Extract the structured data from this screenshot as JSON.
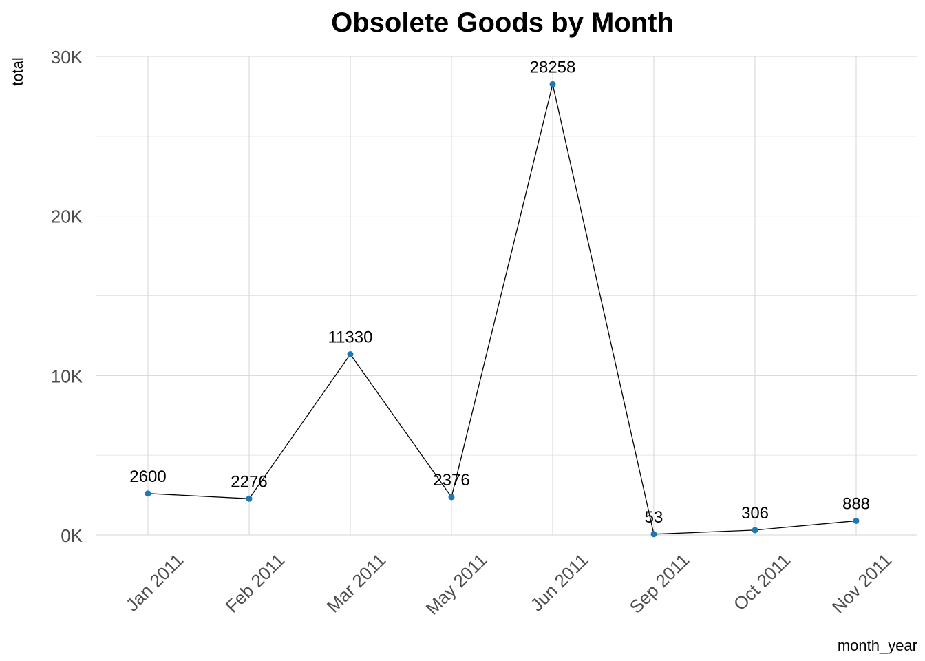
{
  "chart_data": {
    "type": "line",
    "title": "Obsolete Goods by Month",
    "xlabel": "month_year",
    "ylabel": "total",
    "categories": [
      "Jan 2011",
      "Feb 2011",
      "Mar 2011",
      "May 2011",
      "Jun 2011",
      "Sep 2011",
      "Oct 2011",
      "Nov 2011"
    ],
    "values": [
      2600,
      2276,
      11330,
      2376,
      28258,
      53,
      306,
      888
    ],
    "ylim": [
      0,
      30000
    ],
    "yticks": [
      0,
      10000,
      20000,
      30000
    ],
    "ytick_labels": [
      "0K",
      "10K",
      "20K",
      "30K"
    ],
    "grid": true,
    "line_color": "#000000",
    "point_color": "#1f77b4"
  }
}
